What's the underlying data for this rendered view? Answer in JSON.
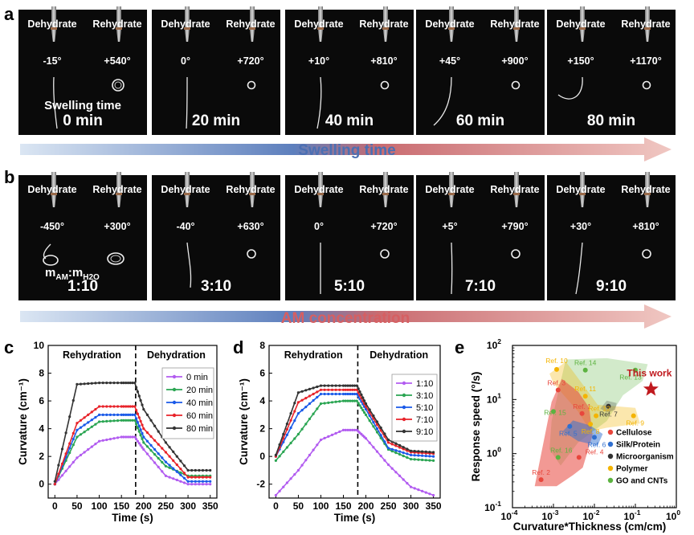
{
  "panel_letters": {
    "a": "a",
    "b": "b",
    "c": "c",
    "d": "d",
    "e": "e"
  },
  "photo_labels": {
    "dehydrate": "Dehydrate",
    "rehydrate": "Rehydrate"
  },
  "row_a": {
    "caption": "Swelling time",
    "arrow_label": "Swelling time",
    "tiles": [
      {
        "dehydrate_angle": "-15°",
        "rehydrate_angle": "+540°",
        "time": "0 min"
      },
      {
        "dehydrate_angle": "0°",
        "rehydrate_angle": "+720°",
        "time": "20 min"
      },
      {
        "dehydrate_angle": "+10°",
        "rehydrate_angle": "+810°",
        "time": "40 min"
      },
      {
        "dehydrate_angle": "+45°",
        "rehydrate_angle": "+900°",
        "time": "60 min"
      },
      {
        "dehydrate_angle": "+150°",
        "rehydrate_angle": "+1170°",
        "time": "80 min"
      }
    ]
  },
  "row_b": {
    "caption_main": "m",
    "caption_sub1": "AM",
    "caption_mid": ":m",
    "caption_sub2": "H2O",
    "arrow_label": "AM concentration",
    "tiles": [
      {
        "dehydrate_angle": "-450°",
        "rehydrate_angle": "+300°",
        "ratio": "1:10"
      },
      {
        "dehydrate_angle": "-40°",
        "rehydrate_angle": "+630°",
        "ratio": "3:10"
      },
      {
        "dehydrate_angle": "0°",
        "rehydrate_angle": "+720°",
        "ratio": "5:10"
      },
      {
        "dehydrate_angle": "+5°",
        "rehydrate_angle": "+790°",
        "ratio": "7:10"
      },
      {
        "dehydrate_angle": "+30°",
        "rehydrate_angle": "+810°",
        "ratio": "9:10"
      }
    ]
  },
  "chart_c": {
    "xlabel": "Time (s)",
    "ylabel": "Curvature (cm⁻¹)",
    "phase_left": "Rehydration",
    "phase_right": "Dehydration",
    "xticks": [
      "0",
      "50",
      "100",
      "150",
      "200",
      "250",
      "300",
      "350"
    ],
    "yticks": [
      "0",
      "2",
      "4",
      "6",
      "8",
      "10"
    ]
  },
  "chart_d": {
    "xlabel": "Time (s)",
    "ylabel": "Curvature (cm⁻¹)",
    "phase_left": "Rehydration",
    "phase_right": "Dehydration",
    "xticks": [
      "0",
      "50",
      "100",
      "150",
      "200",
      "250",
      "300",
      "350"
    ],
    "yticks": [
      "-2",
      "0",
      "2",
      "4",
      "6",
      "8"
    ]
  },
  "chart_e": {
    "xlabel": "Curvature*Thickness (cm/cm)",
    "ylabel": "Response speed (°/s)",
    "xtick_bases": [
      "10",
      "10",
      "10",
      "10",
      "10"
    ],
    "xtick_exps": [
      "-4",
      "-3",
      "-2",
      "-1",
      "0"
    ],
    "ytick_bases": [
      "10",
      "10",
      "10",
      "10"
    ],
    "ytick_exps": [
      "-1",
      "0",
      "1",
      "2"
    ],
    "this_work": "This work",
    "legend": [
      "Cellulose",
      "Silk/Protein",
      "Microorganism",
      "Polymer",
      "GO and CNTs"
    ],
    "ref_labels": [
      "Ref. 1",
      "Ref. 2",
      "Ref. 3",
      "Ref. 4",
      "Ref. 5",
      "Ref. 6",
      "Ref. 7",
      "Ref. 8",
      "Ref. 9",
      "Ref. 10",
      "Ref. 11",
      "Ref. 12",
      "Ref. 13",
      "Ref. 14",
      "Ref. 15",
      "Ref. 16"
    ]
  },
  "colors": {
    "cellulose": "#e8463c",
    "silk": "#2f6fd0",
    "micro": "#333333",
    "polymer": "#f4b400",
    "go": "#5cb340",
    "this_work": "#c0191e",
    "arrow_blue": "#4b6fb3",
    "arrow_red": "#d65f62",
    "c_0": "#b25cf0",
    "c_20": "#2aa552",
    "c_40": "#1a5ae8",
    "c_60": "#e8232a",
    "c_80": "#333333",
    "d_1": "#b25cf0",
    "d_3": "#2aa552",
    "d_5": "#1a5ae8",
    "d_7": "#e8232a",
    "d_9": "#333333"
  },
  "chart_data": [
    {
      "type": "line",
      "panel": "c",
      "xlabel": "Time (s)",
      "ylabel": "Curvature (cm-1)",
      "xlim": [
        -15,
        365
      ],
      "ylim": [
        -1,
        10
      ],
      "series": [
        {
          "name": "0 min",
          "x": [
            0,
            50,
            100,
            150,
            180,
            200,
            250,
            300,
            350
          ],
          "values": [
            0,
            1.9,
            3.1,
            3.4,
            3.4,
            2.5,
            0.6,
            0,
            0
          ]
        },
        {
          "name": "20 min",
          "x": [
            0,
            50,
            100,
            150,
            180,
            200,
            250,
            300,
            350
          ],
          "values": [
            0,
            3.4,
            4.5,
            4.6,
            4.6,
            3.0,
            1.3,
            0.6,
            0.6
          ]
        },
        {
          "name": "40 min",
          "x": [
            0,
            50,
            100,
            150,
            180,
            200,
            250,
            300,
            350
          ],
          "values": [
            0,
            3.9,
            5.0,
            5.0,
            5.0,
            3.4,
            1.6,
            0.2,
            0.2
          ]
        },
        {
          "name": "60 min",
          "x": [
            0,
            50,
            100,
            150,
            180,
            200,
            250,
            300,
            350
          ],
          "values": [
            0,
            4.4,
            5.6,
            5.6,
            5.6,
            4.0,
            2.3,
            0.5,
            0.5
          ]
        },
        {
          "name": "80 min",
          "x": [
            0,
            50,
            100,
            150,
            180,
            200,
            250,
            300,
            350
          ],
          "values": [
            0.2,
            7.2,
            7.3,
            7.3,
            7.3,
            5.4,
            3.0,
            1.0,
            1.0
          ]
        }
      ]
    },
    {
      "type": "line",
      "panel": "d",
      "xlabel": "Time (s)",
      "ylabel": "Curvature (cm-1)",
      "xlim": [
        -15,
        365
      ],
      "ylim": [
        -3,
        8
      ],
      "series": [
        {
          "name": "1:10",
          "x": [
            0,
            50,
            100,
            150,
            180,
            200,
            250,
            300,
            350
          ],
          "values": [
            -2.8,
            -1.0,
            1.2,
            1.9,
            1.9,
            1.3,
            -0.6,
            -2.2,
            -2.8
          ]
        },
        {
          "name": "3:10",
          "x": [
            0,
            50,
            100,
            150,
            180,
            200,
            250,
            300,
            350
          ],
          "values": [
            -0.3,
            1.6,
            3.8,
            4.0,
            4.0,
            3.0,
            0.5,
            -0.2,
            -0.3
          ]
        },
        {
          "name": "5:10",
          "x": [
            0,
            50,
            100,
            150,
            180,
            200,
            250,
            300,
            350
          ],
          "values": [
            0,
            3.1,
            4.5,
            4.5,
            4.5,
            3.4,
            0.6,
            0.1,
            0
          ]
        },
        {
          "name": "7:10",
          "x": [
            0,
            50,
            100,
            150,
            180,
            200,
            250,
            300,
            350
          ],
          "values": [
            0,
            3.9,
            4.8,
            4.8,
            4.8,
            3.6,
            1.0,
            0.3,
            0.2
          ]
        },
        {
          "name": "9:10",
          "x": [
            0,
            50,
            100,
            150,
            180,
            200,
            250,
            300,
            350
          ],
          "values": [
            0.1,
            4.6,
            5.1,
            5.1,
            5.1,
            3.8,
            1.2,
            0.4,
            0.3
          ]
        }
      ]
    },
    {
      "type": "scatter",
      "panel": "e",
      "xscale": "log",
      "yscale": "log",
      "xlim": [
        0.0001,
        1
      ],
      "ylim": [
        0.1,
        100
      ],
      "points": [
        {
          "label": "Ref. 1",
          "x": 0.005,
          "y": 5.5,
          "category": "Cellulose"
        },
        {
          "label": "Ref. 2",
          "x": 0.0005,
          "y": 0.33,
          "category": "Cellulose"
        },
        {
          "label": "Ref. 3",
          "x": 0.0013,
          "y": 15,
          "category": "Cellulose"
        },
        {
          "label": "Ref. 4",
          "x": 0.0042,
          "y": 0.85,
          "category": "Cellulose"
        },
        {
          "label": "Ref. 5",
          "x": 0.0025,
          "y": 3.2,
          "category": "Silk/Protein"
        },
        {
          "label": "Ref. 6",
          "x": 0.01,
          "y": 2.0,
          "category": "Silk/Protein"
        },
        {
          "label": "Ref. 7",
          "x": 0.022,
          "y": 7.5,
          "category": "Microorganism"
        },
        {
          "label": "Ref. 8",
          "x": 0.008,
          "y": 3.5,
          "category": "Polymer"
        },
        {
          "label": "Ref. 9",
          "x": 0.09,
          "y": 5.0,
          "category": "Polymer"
        },
        {
          "label": "Ref. 10",
          "x": 0.0012,
          "y": 36,
          "category": "Polymer"
        },
        {
          "label": "Ref. 11",
          "x": 0.006,
          "y": 11.5,
          "category": "Polymer"
        },
        {
          "label": "Ref. 12",
          "x": 0.011,
          "y": 5.0,
          "category": "Polymer"
        },
        {
          "label": "Ref. 13",
          "x": 0.1,
          "y": 35,
          "category": "GO and CNTs"
        },
        {
          "label": "Ref. 14",
          "x": 0.006,
          "y": 35,
          "category": "GO and CNTs"
        },
        {
          "label": "Ref. 15",
          "x": 0.001,
          "y": 6.0,
          "category": "GO and CNTs"
        },
        {
          "label": "Ref. 16",
          "x": 0.0013,
          "y": 0.85,
          "category": "GO and CNTs"
        },
        {
          "label": "This work",
          "x": 0.24,
          "y": 15.5,
          "category": "This work"
        }
      ]
    }
  ]
}
